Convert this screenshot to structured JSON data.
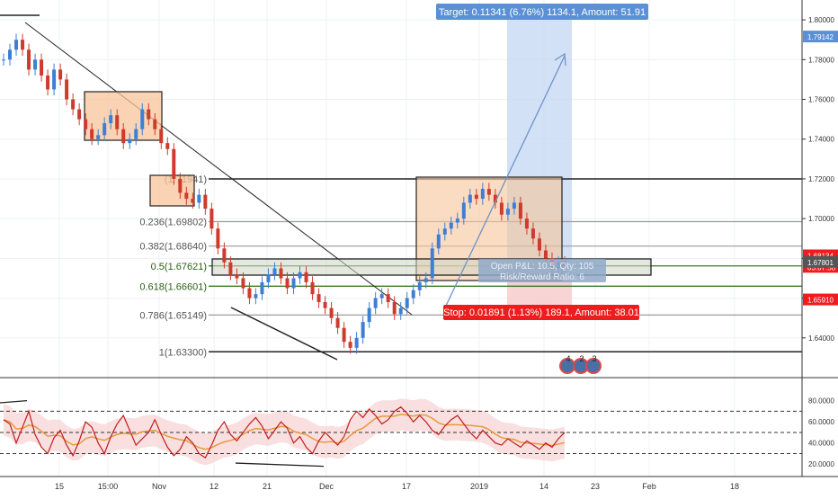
{
  "colors": {
    "up": "#3d7fd6",
    "down": "#d03a2c",
    "target_zone": "#c7d9f3",
    "stop_zone": "#f7cccc",
    "target_badge": "#5b8fd6",
    "stop_badge": "#ee1c1c",
    "box_fill": "#f7c49a",
    "box_stroke": "#222222",
    "fib_line": "#9c9c9c",
    "fib_green": "#3a7a1f",
    "osc_line": "#c21d1d",
    "osc_ma": "#e89a3c",
    "osc_band_fill": "#f6d2d2",
    "osc_band_fill_low": "#d7efd0"
  },
  "fib_levels": [
    {
      "ratio": "1",
      "price": 1.72,
      "label": "(1.71941)"
    },
    {
      "ratio": "0.236",
      "price": 1.6985,
      "label": "0.236(1.69802)"
    },
    {
      "ratio": "0.382",
      "price": 1.6862,
      "label": "0.382(1.68640)"
    },
    {
      "ratio": "0.5",
      "price": 1.6762,
      "label": "0.5(1.67621)"
    },
    {
      "ratio": "0.618",
      "price": 1.666,
      "label": "0.618(1.66601)"
    },
    {
      "ratio": "0.786",
      "price": 1.6515,
      "label": "0.786(1.65149)"
    },
    {
      "ratio": "0",
      "price": 1.633,
      "label": "1(1.63300)"
    }
  ],
  "trade": {
    "target_label": "Target: 0.11341 (6.76%) 1134.1, Amount: 51.91",
    "stop_label": "Stop: 0.01891 (1.13%) 189.1, Amount: 38.01",
    "open_label": "Open P&L: 10.5, Qty: 105",
    "risk_label": "Risk/Reward Ratio: 6"
  },
  "events": [
    "4",
    "2",
    "3"
  ],
  "chart_data": {
    "type": "line",
    "price_axis": {
      "ylim": [
        1.62,
        1.81
      ],
      "ticks": [
        "1.80000",
        "1.78000",
        "1.76000",
        "1.74000",
        "1.72000",
        "1.70000",
        "1.68000",
        "1.66000",
        "1.64000"
      ],
      "tick_values": [
        1.8,
        1.78,
        1.76,
        1.74,
        1.72,
        1.7,
        1.68,
        1.66,
        1.64
      ]
    },
    "price_badges": [
      {
        "text": "1.79142",
        "price": 1.7914,
        "color": "#5b8fd6"
      },
      {
        "text": "1.68134",
        "price": 1.6813,
        "color": "#ee1c1c"
      },
      {
        "text": "03:07:58",
        "price": 1.6755,
        "color": "#ee1c1c"
      },
      {
        "text": "1.67801",
        "price": 1.678,
        "color": "#555555"
      },
      {
        "text": "1.65910",
        "price": 1.6591,
        "color": "#ee1c1c"
      }
    ],
    "x_ticks": [
      "15",
      "15:00",
      "Nov",
      "12",
      "21",
      "Dec",
      "17",
      "2019",
      "14",
      "23",
      "Feb",
      "18"
    ],
    "close_series": [
      1.78,
      1.785,
      1.79,
      1.785,
      1.775,
      1.78,
      1.772,
      1.765,
      1.775,
      1.77,
      1.76,
      1.755,
      1.75,
      1.745,
      1.74,
      1.742,
      1.748,
      1.752,
      1.745,
      1.738,
      1.74,
      1.745,
      1.755,
      1.75,
      1.745,
      1.738,
      1.735,
      1.72,
      1.713,
      1.71,
      1.708,
      1.712,
      1.705,
      1.695,
      1.685,
      1.678,
      1.672,
      1.67,
      1.665,
      1.66,
      1.662,
      1.668,
      1.672,
      1.675,
      1.67,
      1.665,
      1.67,
      1.673,
      1.668,
      1.662,
      1.658,
      1.655,
      1.65,
      1.645,
      1.638,
      1.635,
      1.64,
      1.648,
      1.655,
      1.66,
      1.662,
      1.658,
      1.652,
      1.655,
      1.66,
      1.664,
      1.668,
      1.67,
      1.685,
      1.692,
      1.695,
      1.698,
      1.7,
      1.708,
      1.712,
      1.71,
      1.715,
      1.712,
      1.708,
      1.702,
      1.705,
      1.708,
      1.7,
      1.695,
      1.69,
      1.684,
      1.68,
      1.675,
      1.678,
      1.676
    ],
    "oscillator": {
      "ticks": [
        "80.0000",
        "60.0000",
        "40.0000",
        "20.0000"
      ],
      "tick_values": [
        80,
        60,
        40,
        20
      ],
      "ylim": [
        10,
        95
      ],
      "bands": [
        70,
        50,
        30
      ],
      "values": [
        62,
        58,
        40,
        55,
        70,
        48,
        36,
        30,
        45,
        52,
        38,
        28,
        42,
        60,
        55,
        40,
        30,
        46,
        58,
        66,
        52,
        38,
        44,
        50,
        62,
        48,
        36,
        28,
        34,
        46,
        40,
        30,
        26,
        38,
        52,
        60,
        48,
        42,
        50,
        58,
        64,
        56,
        44,
        52,
        60,
        54,
        40,
        46,
        36,
        30,
        42,
        50,
        44,
        38,
        46,
        62,
        70,
        64,
        72,
        66,
        58,
        62,
        70,
        74,
        68,
        60,
        66,
        60,
        52,
        48,
        56,
        62,
        66,
        58,
        50,
        44,
        52,
        46,
        40,
        38,
        44,
        40,
        36,
        42,
        38,
        34,
        40,
        36,
        44,
        50
      ]
    }
  }
}
